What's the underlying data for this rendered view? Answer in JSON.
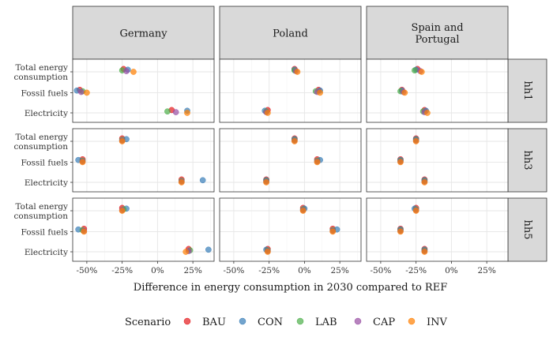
{
  "chart_data": {
    "type": "scatter",
    "xlabel": "Difference in energy consumption in 2030 compared to REF",
    "ylabel": "",
    "x_ticks": [
      "-50%",
      "-25%",
      "0%",
      "25%"
    ],
    "x_tick_values": [
      -50,
      -25,
      0,
      25
    ],
    "xlim": [
      -60,
      40
    ],
    "y_categories": [
      [
        "Total energy",
        "consumption"
      ],
      [
        "Fossil fuels"
      ],
      [
        "Electricity"
      ]
    ],
    "facet_columns": [
      [
        "Germany"
      ],
      [
        "Poland"
      ],
      [
        "Spain and",
        "Portugal"
      ]
    ],
    "facet_rows": [
      "hh1",
      "hh3",
      "hh5"
    ],
    "legend": {
      "title": "Scenario",
      "position": "bottom",
      "entries": [
        {
          "name": "BAU",
          "color": "#e41a1c"
        },
        {
          "name": "CON",
          "color": "#377eb8"
        },
        {
          "name": "LAB",
          "color": "#4daf4a"
        },
        {
          "name": "CAP",
          "color": "#984ea3"
        },
        {
          "name": "INV",
          "color": "#ff7f00"
        }
      ]
    },
    "panels": [
      {
        "country": "Germany",
        "household": "hh1",
        "points": {
          "Total energy consumption": {
            "BAU": -24,
            "CON": -21,
            "LAB": -25,
            "CAP": -22,
            "INV": -17
          },
          "Fossil fuels": {
            "BAU": -55,
            "CON": -57,
            "LAB": -53,
            "CAP": -54,
            "INV": -50
          },
          "Electricity": {
            "BAU": 10,
            "CON": 21,
            "LAB": 7,
            "CAP": 13,
            "INV": 21
          }
        }
      },
      {
        "country": "Poland",
        "household": "hh1",
        "points": {
          "Total energy consumption": {
            "BAU": -7,
            "CON": -7,
            "LAB": -7,
            "CAP": -6,
            "INV": -5
          },
          "Fossil fuels": {
            "BAU": 10,
            "CON": 11,
            "LAB": 8,
            "CAP": 9,
            "INV": 11
          },
          "Electricity": {
            "BAU": -26,
            "CON": -28,
            "LAB": -27,
            "CAP": -27,
            "INV": -26
          }
        }
      },
      {
        "country": "Spain and Portugal",
        "household": "hh1",
        "points": {
          "Total energy consumption": {
            "BAU": -24,
            "CON": -25,
            "LAB": -26,
            "CAP": -22,
            "INV": -21
          },
          "Fossil fuels": {
            "BAU": -35,
            "CON": -35,
            "LAB": -36,
            "CAP": -34,
            "INV": -33
          },
          "Electricity": {
            "BAU": -19,
            "CON": -18,
            "LAB": -20,
            "CAP": -19,
            "INV": -17
          }
        }
      },
      {
        "country": "Germany",
        "household": "hh3",
        "points": {
          "Total energy consumption": {
            "BAU": -25,
            "CON": -22,
            "LAB": -25,
            "CAP": -25,
            "INV": -25
          },
          "Fossil fuels": {
            "BAU": -53,
            "CON": -56,
            "LAB": -53,
            "CAP": -53,
            "INV": -53
          },
          "Electricity": {
            "BAU": 17,
            "CON": 32,
            "LAB": 17,
            "CAP": 17,
            "INV": 17
          }
        }
      },
      {
        "country": "Poland",
        "household": "hh3",
        "points": {
          "Total energy consumption": {
            "BAU": -7,
            "CON": -7,
            "LAB": -7,
            "CAP": -7,
            "INV": -7
          },
          "Fossil fuels": {
            "BAU": 9,
            "CON": 11,
            "LAB": 9,
            "CAP": 9,
            "INV": 9
          },
          "Electricity": {
            "BAU": -27,
            "CON": -27,
            "LAB": -27,
            "CAP": -27,
            "INV": -27
          }
        }
      },
      {
        "country": "Spain and Portugal",
        "household": "hh3",
        "points": {
          "Total energy consumption": {
            "BAU": -25,
            "CON": -25,
            "LAB": -25,
            "CAP": -25,
            "INV": -25
          },
          "Fossil fuels": {
            "BAU": -36,
            "CON": -36,
            "LAB": -36,
            "CAP": -36,
            "INV": -36
          },
          "Electricity": {
            "BAU": -19,
            "CON": -19,
            "LAB": -19,
            "CAP": -19,
            "INV": -19
          }
        }
      },
      {
        "country": "Germany",
        "household": "hh5",
        "points": {
          "Total energy consumption": {
            "BAU": -25,
            "CON": -22,
            "LAB": -24,
            "CAP": -25,
            "INV": -25
          },
          "Fossil fuels": {
            "BAU": -52,
            "CON": -56,
            "LAB": -53,
            "CAP": -52,
            "INV": -52
          },
          "Electricity": {
            "BAU": 22,
            "CON": 36,
            "LAB": 23,
            "CAP": 22,
            "INV": 20
          }
        }
      },
      {
        "country": "Poland",
        "household": "hh5",
        "points": {
          "Total energy consumption": {
            "BAU": -1,
            "CON": 0,
            "LAB": -1,
            "CAP": -1,
            "INV": -1
          },
          "Fossil fuels": {
            "BAU": 20,
            "CON": 23,
            "LAB": 20,
            "CAP": 20,
            "INV": 20
          },
          "Electricity": {
            "BAU": -26,
            "CON": -27,
            "LAB": -26,
            "CAP": -26,
            "INV": -26
          }
        }
      },
      {
        "country": "Spain and Portugal",
        "household": "hh5",
        "points": {
          "Total energy consumption": {
            "BAU": -25,
            "CON": -26,
            "LAB": -25,
            "CAP": -25,
            "INV": -25
          },
          "Fossil fuels": {
            "BAU": -36,
            "CON": -36,
            "LAB": -36,
            "CAP": -36,
            "INV": -36
          },
          "Electricity": {
            "BAU": -19,
            "CON": -19,
            "LAB": -19,
            "CAP": -19,
            "INV": -19
          }
        }
      }
    ]
  }
}
